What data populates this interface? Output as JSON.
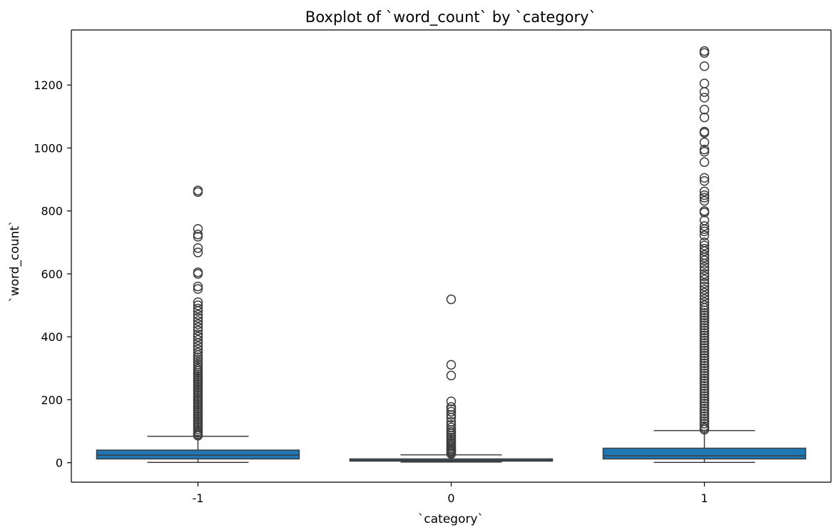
{
  "chart_data": {
    "type": "boxplot",
    "title": "Boxplot of `word_count` by `category`",
    "xlabel": "`category`",
    "ylabel": "`word_count`",
    "categories": [
      "-1",
      "0",
      "1"
    ],
    "ylim": [
      -62,
      1375
    ],
    "yticks": [
      0,
      200,
      400,
      600,
      800,
      1000,
      1200
    ],
    "grid": false,
    "box_color": "#1f77b4",
    "edge_color": "#3d3d3d",
    "boxes": [
      {
        "category": "-1",
        "whislo": 1,
        "q1": 12,
        "median": 24,
        "q3": 40,
        "whishi": 84,
        "outliers": [
          865,
          860,
          743,
          725,
          718,
          682,
          668,
          605,
          600,
          560,
          552,
          510,
          500,
          490,
          482,
          470,
          460,
          450,
          440,
          430,
          420,
          408,
          400,
          390,
          380,
          370,
          360,
          350,
          342,
          335,
          328,
          320,
          312,
          305,
          298,
          292,
          286,
          280,
          274,
          268,
          262,
          256,
          250,
          244,
          238,
          232,
          226,
          220,
          214,
          208,
          202,
          196,
          190,
          184,
          178,
          172,
          166,
          160,
          154,
          148,
          142,
          136,
          130,
          124,
          118,
          112,
          106,
          100,
          95,
          90,
          86
        ]
      },
      {
        "category": "0",
        "whislo": 2,
        "q1": 5,
        "median": 8,
        "q3": 12,
        "whishi": 25,
        "outliers": [
          519,
          311,
          277,
          195,
          177,
          170,
          162,
          152,
          143,
          130,
          120,
          112,
          104,
          98,
          92,
          86,
          80,
          74,
          68,
          62,
          57,
          52,
          47,
          43,
          39,
          35,
          31,
          28
        ]
      },
      {
        "category": "1",
        "whislo": 1,
        "q1": 12,
        "median": 22,
        "q3": 46,
        "whishi": 102,
        "outliers": [
          1308,
          1302,
          1260,
          1205,
          1178,
          1160,
          1122,
          1097,
          1052,
          1048,
          1018,
          995,
          988,
          955,
          905,
          895,
          862,
          850,
          842,
          832,
          800,
          795,
          770,
          752,
          742,
          735,
          722,
          700,
          690,
          680,
          672,
          660,
          652,
          643,
          632,
          622,
          612,
          600,
          592,
          582,
          570,
          560,
          550,
          540,
          530,
          520,
          510,
          500,
          492,
          484,
          476,
          468,
          460,
          452,
          444,
          436,
          428,
          420,
          412,
          404,
          396,
          388,
          380,
          372,
          364,
          356,
          348,
          340,
          332,
          324,
          316,
          308,
          300,
          292,
          284,
          276,
          268,
          260,
          252,
          244,
          236,
          228,
          220,
          212,
          204,
          196,
          188,
          180,
          172,
          164,
          156,
          148,
          140,
          132,
          124,
          116,
          110,
          105
        ]
      }
    ]
  }
}
